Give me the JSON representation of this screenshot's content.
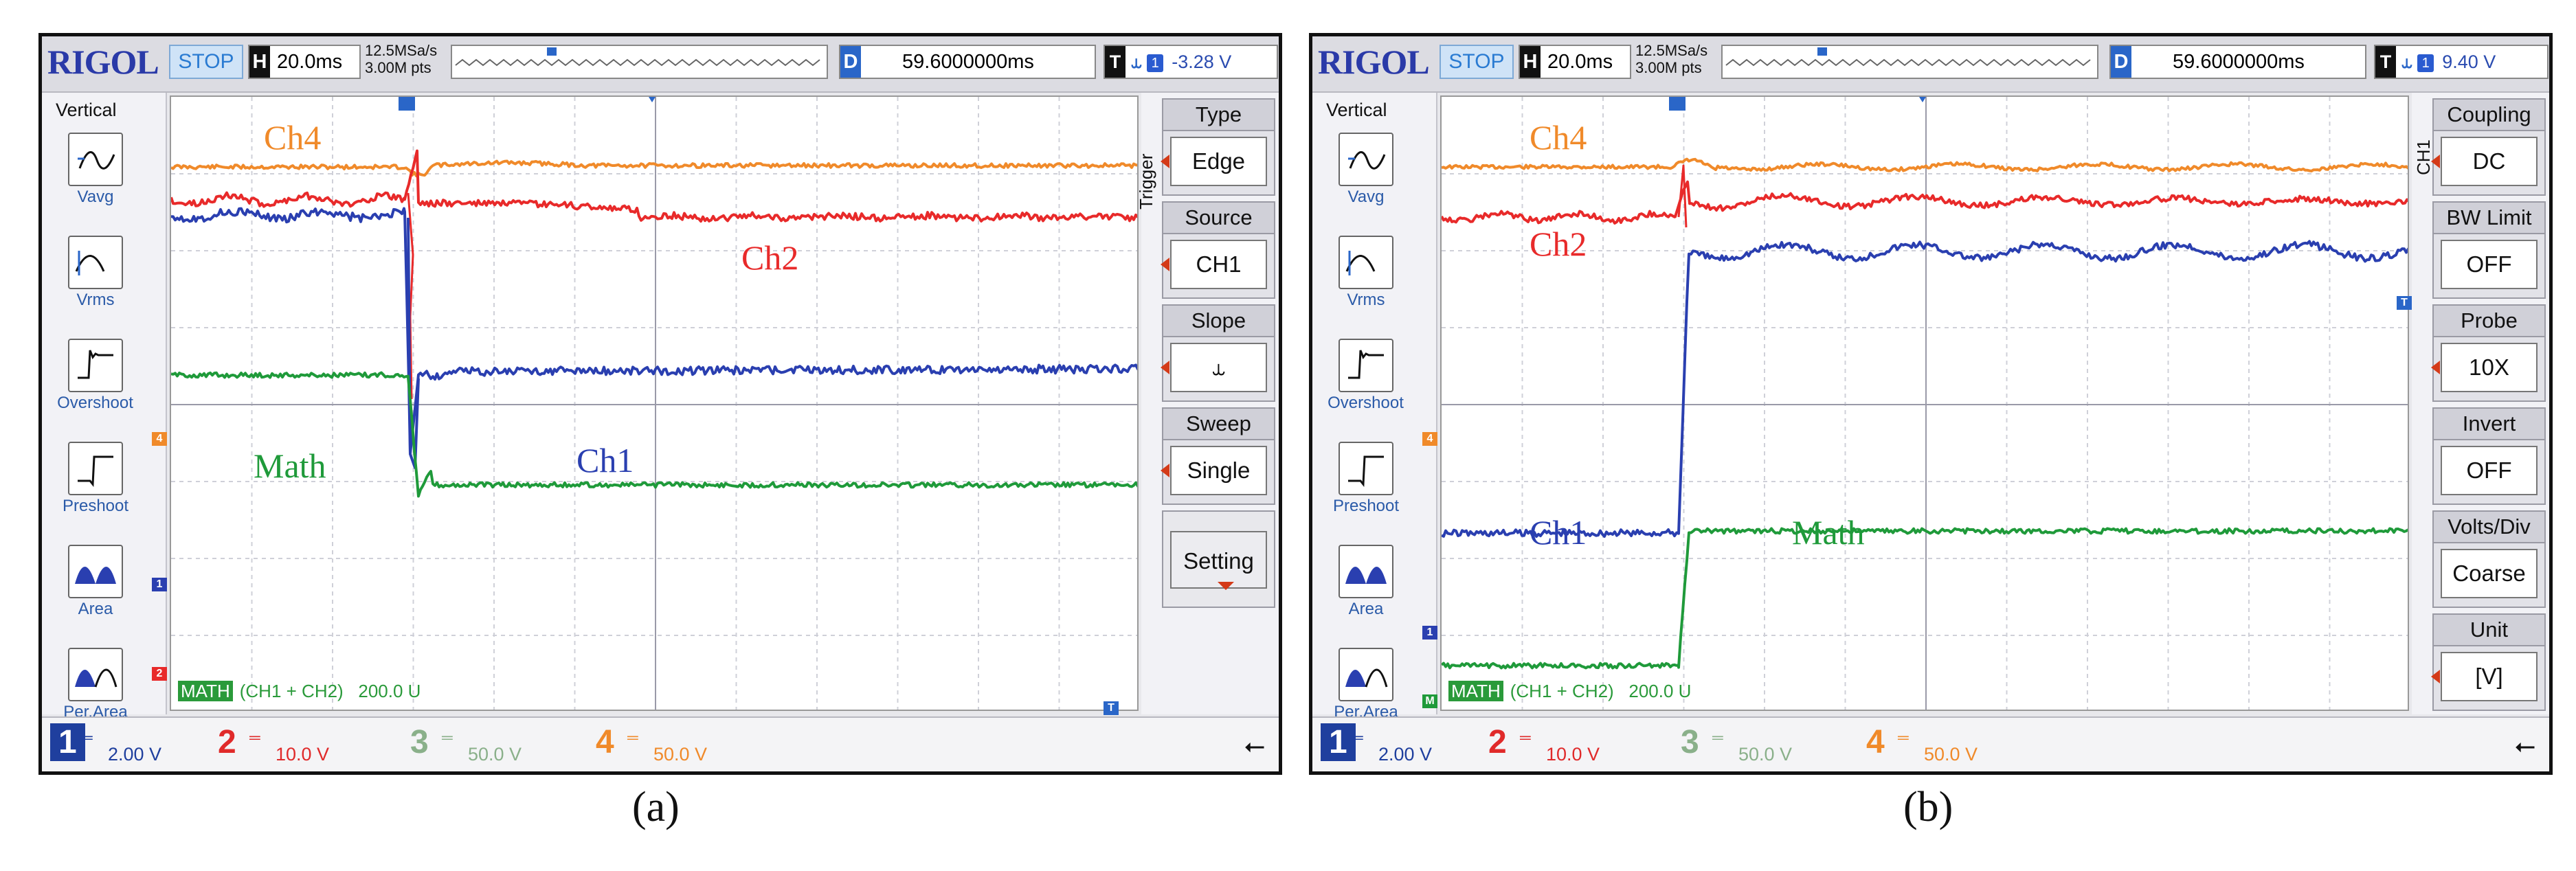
{
  "panels": [
    {
      "logo": "RIGOL",
      "run_state": "STOP",
      "h_label": "H",
      "timebase": "20.0ms",
      "sample_rate": "12.5MSa/s",
      "mem_depth": "3.00M pts",
      "d_label": "D",
      "delay": "59.6000000ms",
      "t_label": "T",
      "trig_source_badge": "1",
      "trig_level": "-3.28 V",
      "vertical_title": "Vertical",
      "measure_buttons": [
        "Vavg",
        "Vrms",
        "Overshoot",
        "Preshoot",
        "Area",
        "Per.Area"
      ],
      "menu_title": "Trigger",
      "menu": [
        {
          "title": "Type",
          "value": "Edge"
        },
        {
          "title": "Source",
          "value": "CH1"
        },
        {
          "title": "Slope",
          "value": "⥿"
        },
        {
          "title": "Sweep",
          "value": "Single"
        },
        {
          "title": "",
          "value": "Setting"
        }
      ],
      "traces": {
        "ch4": "Ch4",
        "ch2": "Ch2",
        "ch1": "Ch1",
        "math": "Math"
      },
      "math_info": {
        "tag": "MATH",
        "expr": "(CH1 + CH2)",
        "scale": "200.0 U"
      },
      "channels": [
        {
          "n": "1",
          "scale": "2.00 V"
        },
        {
          "n": "2",
          "scale": "10.0 V"
        },
        {
          "n": "3",
          "scale": "50.0 V"
        },
        {
          "n": "4",
          "scale": "50.0 V"
        }
      ],
      "caption": "(a)"
    },
    {
      "logo": "RIGOL",
      "run_state": "STOP",
      "h_label": "H",
      "timebase": "20.0ms",
      "sample_rate": "12.5MSa/s",
      "mem_depth": "3.00M pts",
      "d_label": "D",
      "delay": "59.6000000ms",
      "t_label": "T",
      "trig_source_badge": "1",
      "trig_level": "9.40 V",
      "vertical_title": "Vertical",
      "measure_buttons": [
        "Vavg",
        "Vrms",
        "Overshoot",
        "Preshoot",
        "Area",
        "Per.Area"
      ],
      "menu_title": "CH1",
      "menu": [
        {
          "title": "Coupling",
          "value": "DC"
        },
        {
          "title": "BW Limit",
          "value": "OFF"
        },
        {
          "title": "Probe",
          "value": "10X"
        },
        {
          "title": "Invert",
          "value": "OFF"
        },
        {
          "title": "Volts/Div",
          "value": "Coarse"
        },
        {
          "title": "Unit",
          "value": "[V]"
        }
      ],
      "traces": {
        "ch4": "Ch4",
        "ch2": "Ch2",
        "ch1": "Ch1",
        "math": "Math"
      },
      "math_info": {
        "tag": "MATH",
        "expr": "(CH1 + CH2)",
        "scale": "200.0 U"
      },
      "channels": [
        {
          "n": "1",
          "scale": "2.00 V"
        },
        {
          "n": "2",
          "scale": "10.0 V"
        },
        {
          "n": "3",
          "scale": "50.0 V"
        },
        {
          "n": "4",
          "scale": "50.0 V"
        }
      ],
      "caption": "(b)"
    }
  ],
  "colors": {
    "ch1": "#2a3fb0",
    "ch2": "#e82a2a",
    "ch4": "#f08a2a",
    "math": "#1f9a3a"
  }
}
